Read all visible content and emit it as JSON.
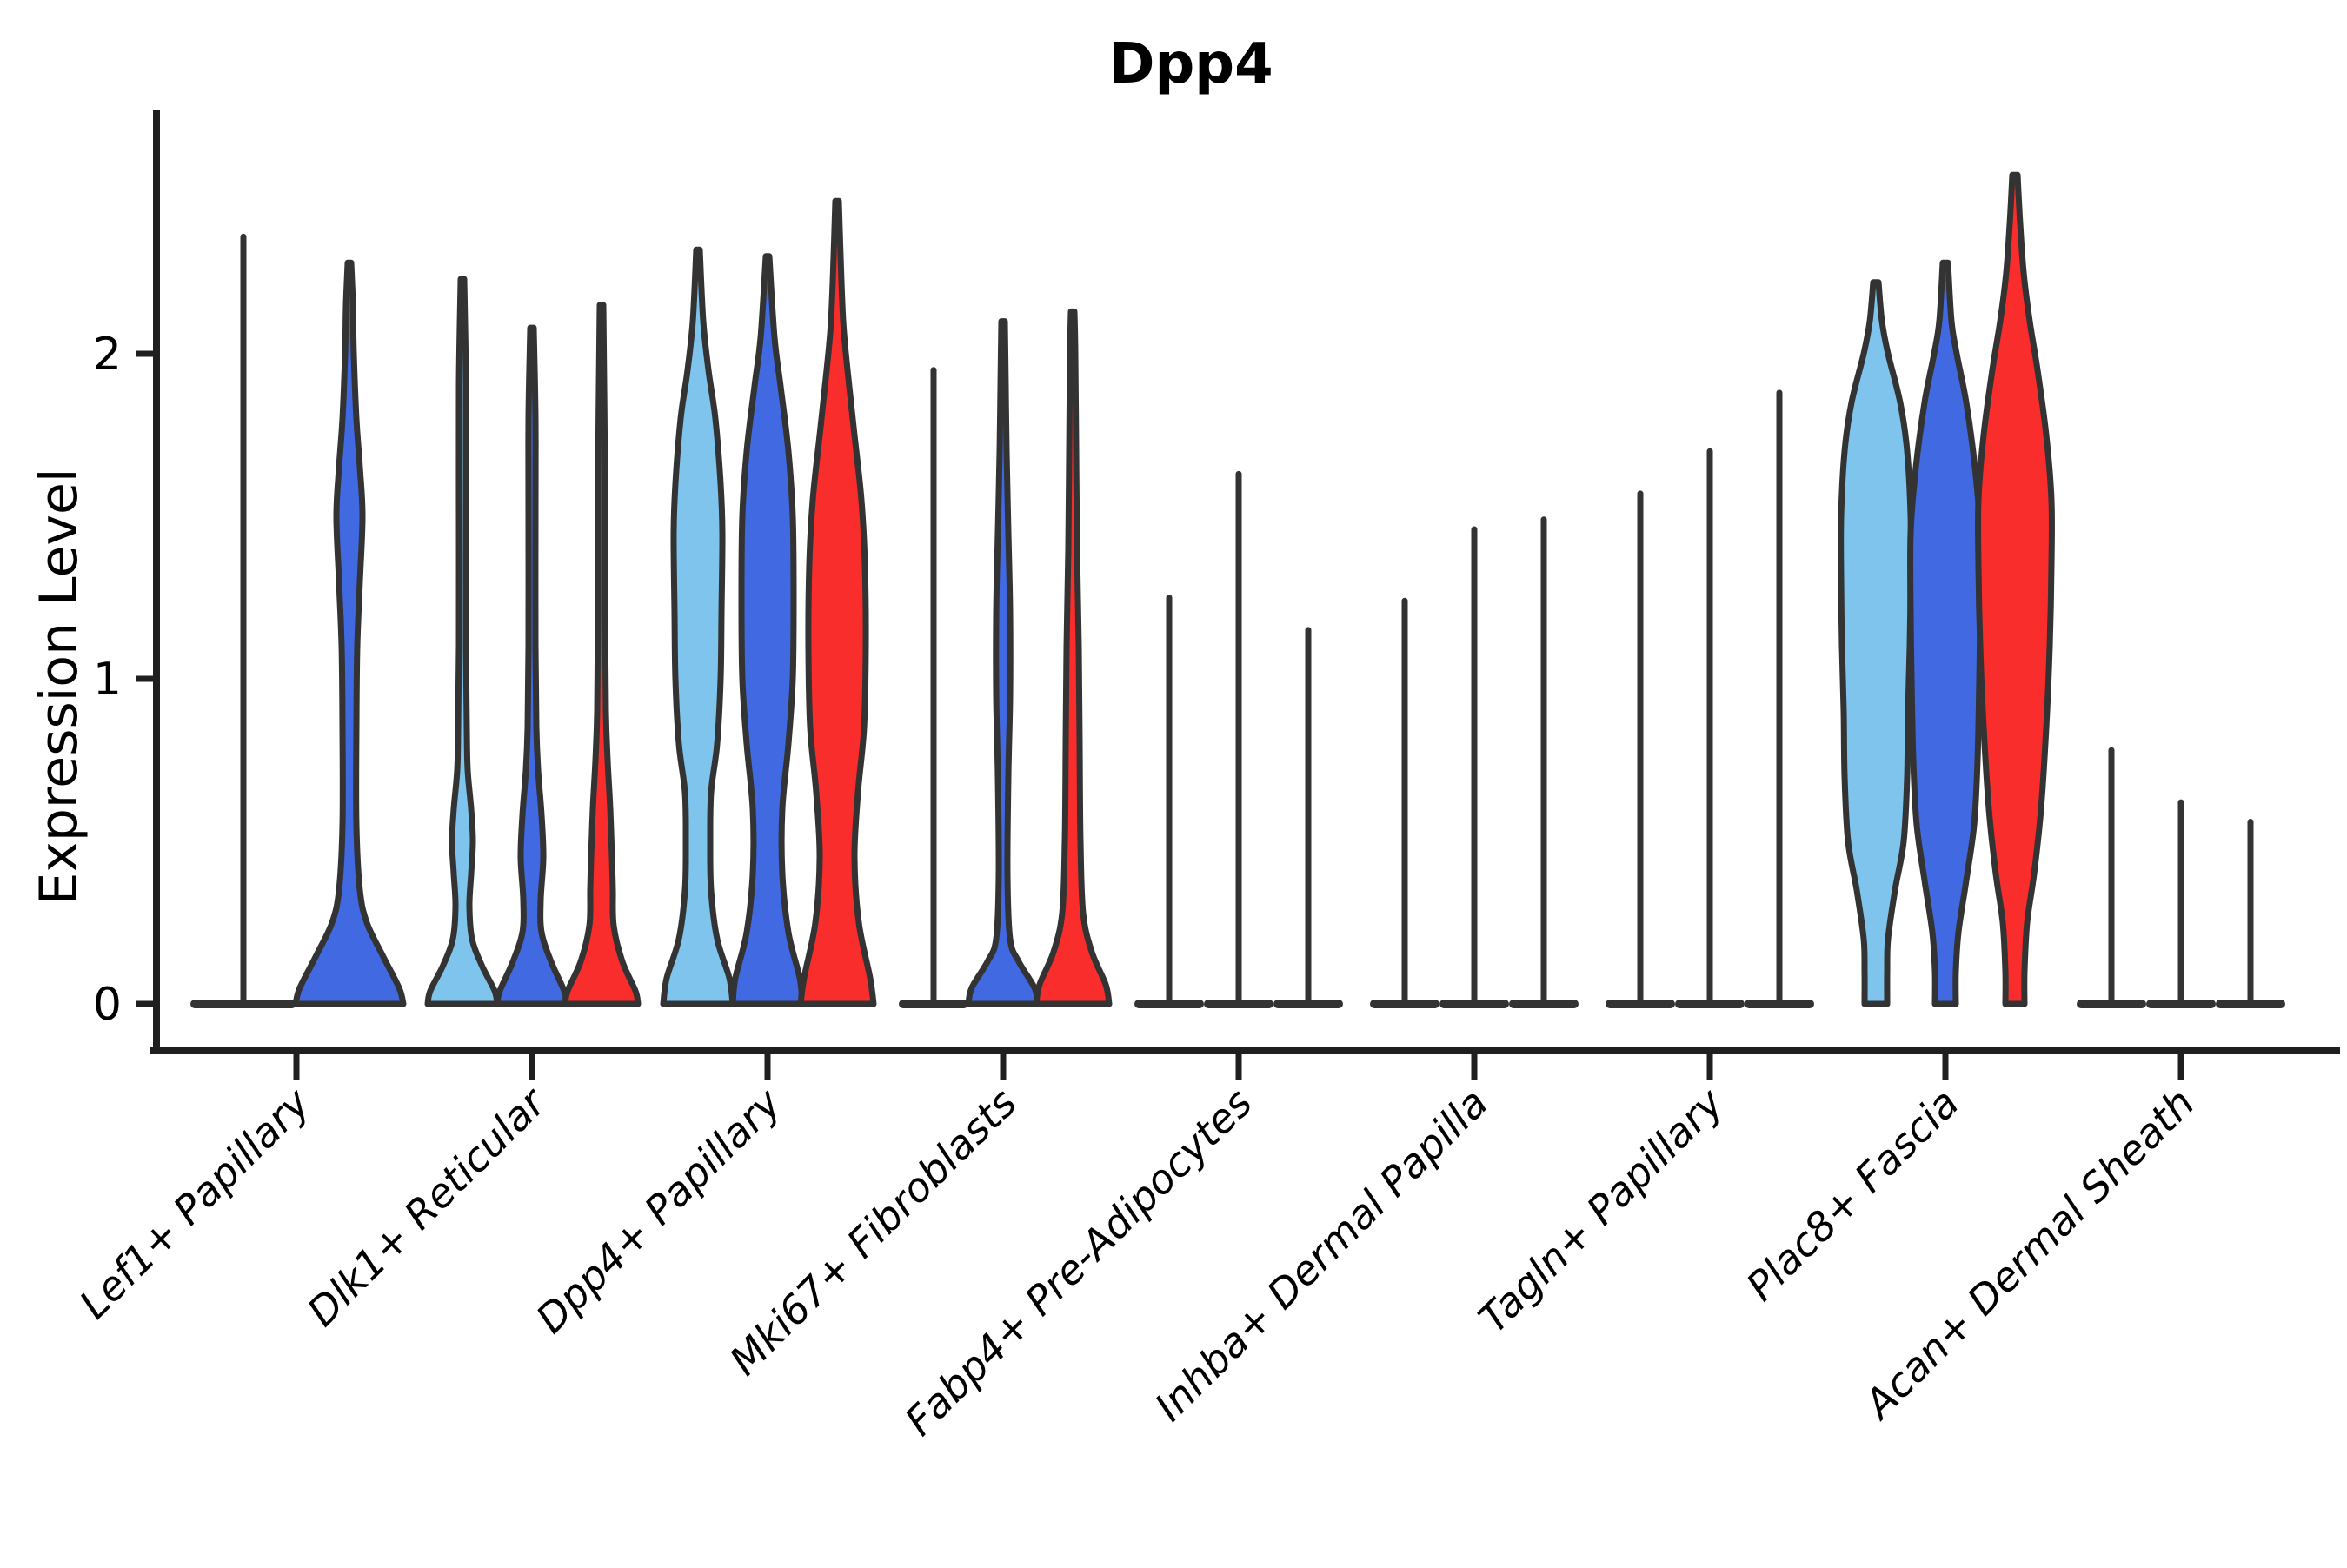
{
  "title": "Dpp4",
  "y_axis": {
    "label": "Expression Level",
    "tick_labels": [
      "0",
      "1",
      "2"
    ]
  },
  "palette": {
    "split_colors": [
      "#7EC4EC",
      "#4169E1",
      "#FA2D2D"
    ],
    "outline": "#333333",
    "axis": "#1f1f1f",
    "background": "#ffffff"
  },
  "chart_data": {
    "type": "violin",
    "title": "Dpp4",
    "xlabel": "",
    "ylabel": "Expression Level",
    "yticks": [
      0,
      1,
      2
    ],
    "ylim": [
      -0.15,
      2.75
    ],
    "grid": false,
    "legend": "none",
    "split_colors": [
      "#7EC4EC",
      "#4169E1",
      "#FA2D2D"
    ],
    "categories": [
      "Lef1+ Papillary",
      "Dlk1+ Reticular",
      "Dpp4+ Papillary",
      "Mki67+ Fibroblasts",
      "Fabp4+ Pre-Adipocytes",
      "Inhba+ Dermal Papilla",
      "Tagln+ Papillary",
      "Plac8+ Fascia",
      "Acan+ Dermal Sheath"
    ],
    "groups": [
      {
        "label": "Lef1+ Papillary",
        "violins": [
          {
            "split": 0,
            "kind": "spike",
            "max": 2.36,
            "base_hw": 61
          },
          {
            "split": 1,
            "kind": "violin",
            "max": 2.28,
            "profile": [
              [
                0,
                62
              ],
              [
                0.05,
                57
              ],
              [
                0.15,
                38
              ],
              [
                0.25,
                20
              ],
              [
                0.35,
                12
              ],
              [
                0.55,
                8
              ],
              [
                0.85,
                8
              ],
              [
                1.1,
                9
              ],
              [
                1.3,
                12
              ],
              [
                1.5,
                15
              ],
              [
                1.65,
                12
              ],
              [
                1.8,
                8
              ],
              [
                2.0,
                5
              ],
              [
                2.15,
                4
              ],
              [
                2.28,
                2
              ]
            ]
          }
        ]
      },
      {
        "label": "Dlk1+ Reticular",
        "violins": [
          {
            "split": 0,
            "kind": "violin",
            "max": 2.23,
            "profile": [
              [
                0,
                40
              ],
              [
                0.04,
                37
              ],
              [
                0.12,
                22
              ],
              [
                0.2,
                11
              ],
              [
                0.3,
                8
              ],
              [
                0.4,
                10
              ],
              [
                0.5,
                12
              ],
              [
                0.6,
                10
              ],
              [
                0.72,
                6
              ],
              [
                0.85,
                5
              ],
              [
                1.1,
                4
              ],
              [
                1.5,
                4
              ],
              [
                1.9,
                4
              ],
              [
                2.23,
                2
              ]
            ]
          },
          {
            "split": 1,
            "kind": "violin",
            "max": 2.08,
            "profile": [
              [
                0,
                40
              ],
              [
                0.04,
                37
              ],
              [
                0.13,
                22
              ],
              [
                0.22,
                11
              ],
              [
                0.32,
                10
              ],
              [
                0.45,
                13
              ],
              [
                0.58,
                11
              ],
              [
                0.72,
                7
              ],
              [
                0.85,
                5
              ],
              [
                1.1,
                4
              ],
              [
                1.5,
                4
              ],
              [
                1.8,
                4
              ],
              [
                2.08,
                2
              ]
            ]
          },
          {
            "split": 2,
            "kind": "violin",
            "max": 2.15,
            "profile": [
              [
                0,
                42
              ],
              [
                0.04,
                39
              ],
              [
                0.13,
                24
              ],
              [
                0.24,
                14
              ],
              [
                0.35,
                13
              ],
              [
                0.45,
                12
              ],
              [
                0.6,
                10
              ],
              [
                0.75,
                7
              ],
              [
                0.9,
                5
              ],
              [
                1.2,
                4
              ],
              [
                1.6,
                4
              ],
              [
                2.15,
                2
              ]
            ]
          }
        ]
      },
      {
        "label": "Dpp4+ Papillary",
        "violins": [
          {
            "split": 0,
            "kind": "violin",
            "max": 2.32,
            "profile": [
              [
                0,
                40
              ],
              [
                0.08,
                36
              ],
              [
                0.2,
                22
              ],
              [
                0.35,
                15
              ],
              [
                0.5,
                14
              ],
              [
                0.65,
                15
              ],
              [
                0.8,
                22
              ],
              [
                1.0,
                26
              ],
              [
                1.2,
                27
              ],
              [
                1.45,
                28
              ],
              [
                1.6,
                26
              ],
              [
                1.8,
                20
              ],
              [
                1.95,
                12
              ],
              [
                2.1,
                6
              ],
              [
                2.32,
                2
              ]
            ]
          },
          {
            "split": 1,
            "kind": "violin",
            "max": 2.3,
            "profile": [
              [
                0,
                40
              ],
              [
                0.08,
                37
              ],
              [
                0.22,
                24
              ],
              [
                0.4,
                17
              ],
              [
                0.6,
                17
              ],
              [
                0.8,
                24
              ],
              [
                1.0,
                29
              ],
              [
                1.25,
                30
              ],
              [
                1.5,
                29
              ],
              [
                1.7,
                24
              ],
              [
                1.9,
                15
              ],
              [
                2.05,
                8
              ],
              [
                2.3,
                2
              ]
            ]
          },
          {
            "split": 2,
            "kind": "violin",
            "max": 2.47,
            "profile": [
              [
                0,
                42
              ],
              [
                0.08,
                38
              ],
              [
                0.25,
                25
              ],
              [
                0.45,
                20
              ],
              [
                0.65,
                24
              ],
              [
                0.85,
                31
              ],
              [
                1.1,
                33
              ],
              [
                1.35,
                32
              ],
              [
                1.55,
                28
              ],
              [
                1.75,
                20
              ],
              [
                1.95,
                12
              ],
              [
                2.1,
                7
              ],
              [
                2.3,
                4
              ],
              [
                2.47,
                2
              ]
            ]
          }
        ]
      },
      {
        "label": "Mki67+ Fibroblasts",
        "violins": [
          {
            "split": 0,
            "kind": "spike",
            "max": 1.95,
            "base_hw": 40
          },
          {
            "split": 1,
            "kind": "violin",
            "max": 2.1,
            "profile": [
              [
                0,
                40
              ],
              [
                0.05,
                36
              ],
              [
                0.13,
                18
              ],
              [
                0.2,
                8
              ],
              [
                0.4,
                5
              ],
              [
                0.7,
                6
              ],
              [
                0.95,
                8
              ],
              [
                1.2,
                8
              ],
              [
                1.45,
                6
              ],
              [
                1.7,
                4
              ],
              [
                1.9,
                3
              ],
              [
                2.1,
                2
              ]
            ]
          },
          {
            "split": 2,
            "kind": "violin",
            "max": 2.13,
            "profile": [
              [
                0,
                42
              ],
              [
                0.06,
                38
              ],
              [
                0.16,
                22
              ],
              [
                0.28,
                12
              ],
              [
                0.5,
                9
              ],
              [
                0.8,
                8
              ],
              [
                1.1,
                7
              ],
              [
                1.4,
                5
              ],
              [
                1.7,
                4
              ],
              [
                2.0,
                3
              ],
              [
                2.13,
                2
              ]
            ]
          }
        ]
      },
      {
        "label": "Fabp4+ Pre-Adipocytes",
        "violins": [
          {
            "split": 0,
            "kind": "spike",
            "max": 1.25,
            "base_hw": 40
          },
          {
            "split": 1,
            "kind": "spike",
            "max": 1.63,
            "base_hw": 40
          },
          {
            "split": 2,
            "kind": "spike",
            "max": 1.15,
            "base_hw": 40
          }
        ]
      },
      {
        "label": "Inhba+ Dermal Papilla",
        "violins": [
          {
            "split": 0,
            "kind": "spike",
            "max": 1.24,
            "base_hw": 40
          },
          {
            "split": 1,
            "kind": "spike",
            "max": 1.46,
            "base_hw": 40
          },
          {
            "split": 2,
            "kind": "spike",
            "max": 1.49,
            "base_hw": 40
          }
        ]
      },
      {
        "label": "Tagln+ Papillary",
        "violins": [
          {
            "split": 0,
            "kind": "spike",
            "max": 1.57,
            "base_hw": 40
          },
          {
            "split": 1,
            "kind": "spike",
            "max": 1.7,
            "base_hw": 40
          },
          {
            "split": 2,
            "kind": "spike",
            "max": 1.88,
            "base_hw": 40
          }
        ]
      },
      {
        "label": "Plac8+ Fascia",
        "violins": [
          {
            "split": 0,
            "kind": "violin",
            "max": 2.22,
            "profile": [
              [
                0,
                13
              ],
              [
                0.1,
                13
              ],
              [
                0.2,
                14
              ],
              [
                0.35,
                22
              ],
              [
                0.5,
                32
              ],
              [
                0.7,
                36
              ],
              [
                0.9,
                37
              ],
              [
                1.1,
                39
              ],
              [
                1.3,
                40
              ],
              [
                1.5,
                40
              ],
              [
                1.7,
                36
              ],
              [
                1.85,
                28
              ],
              [
                2.0,
                14
              ],
              [
                2.1,
                7
              ],
              [
                2.22,
                3
              ]
            ]
          },
          {
            "split": 1,
            "kind": "violin",
            "max": 2.28,
            "profile": [
              [
                0,
                12
              ],
              [
                0.1,
                12
              ],
              [
                0.22,
                15
              ],
              [
                0.38,
                24
              ],
              [
                0.55,
                33
              ],
              [
                0.75,
                37
              ],
              [
                1.0,
                39
              ],
              [
                1.2,
                40
              ],
              [
                1.45,
                40
              ],
              [
                1.65,
                34
              ],
              [
                1.85,
                24
              ],
              [
                2.0,
                13
              ],
              [
                2.1,
                7
              ],
              [
                2.28,
                3
              ]
            ]
          },
          {
            "split": 2,
            "kind": "violin",
            "max": 2.55,
            "profile": [
              [
                0,
                11
              ],
              [
                0.1,
                11
              ],
              [
                0.25,
                14
              ],
              [
                0.4,
                22
              ],
              [
                0.6,
                30
              ],
              [
                0.85,
                36
              ],
              [
                1.1,
                40
              ],
              [
                1.35,
                42
              ],
              [
                1.55,
                42
              ],
              [
                1.75,
                36
              ],
              [
                1.95,
                26
              ],
              [
                2.1,
                17
              ],
              [
                2.25,
                10
              ],
              [
                2.4,
                6
              ],
              [
                2.55,
                3
              ]
            ]
          }
        ]
      },
      {
        "label": "Acan+ Dermal Sheath",
        "violins": [
          {
            "split": 0,
            "kind": "spike",
            "max": 0.78,
            "base_hw": 40
          },
          {
            "split": 1,
            "kind": "spike",
            "max": 0.62,
            "base_hw": 40
          },
          {
            "split": 2,
            "kind": "spike",
            "max": 0.56,
            "base_hw": 40
          }
        ]
      }
    ]
  }
}
